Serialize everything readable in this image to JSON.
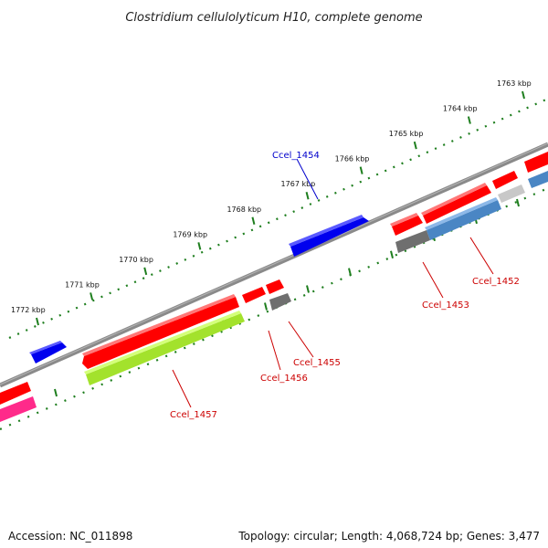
{
  "title": "Clostridium cellulolyticum H10, complete genome",
  "footer": {
    "accession": "Accession: NC_011898",
    "summary": "Topology: circular; Length: 4,068,724 bp; Genes: 3,477"
  },
  "ticks": [
    "1772 kbp",
    "1771 kbp",
    "1770 kbp",
    "1769 kbp",
    "1768 kbp",
    "1767 kbp",
    "1766 kbp",
    "1765 kbp",
    "1764 kbp",
    "1763 kbp"
  ],
  "genes": [
    {
      "label": "Ccel_1454",
      "color": "#00008b",
      "label_color": "#0000cc"
    },
    {
      "label": "Ccel_1452",
      "color": "#cc0000",
      "label_color": "#cc0000"
    },
    {
      "label": "Ccel_1453",
      "color": "#cc0000",
      "label_color": "#cc0000"
    },
    {
      "label": "Ccel_1455",
      "color": "#cc0000",
      "label_color": "#cc0000"
    },
    {
      "label": "Ccel_1456",
      "color": "#cc0000",
      "label_color": "#cc0000"
    },
    {
      "label": "Ccel_1457",
      "color": "#cc0000",
      "label_color": "#cc0000"
    }
  ],
  "colors": {
    "cds_red": "#ff0000",
    "cds_blue": "#0000ee",
    "cog_green": "#a3e22c",
    "cog_steel": "#4a86c4",
    "cog_gray": "#6f6f6f",
    "cog_light": "#c8c8c8",
    "cog_pink": "#ff2a8a",
    "backbone": "#8a8a8a",
    "tick_green": "#1e7e1e"
  }
}
